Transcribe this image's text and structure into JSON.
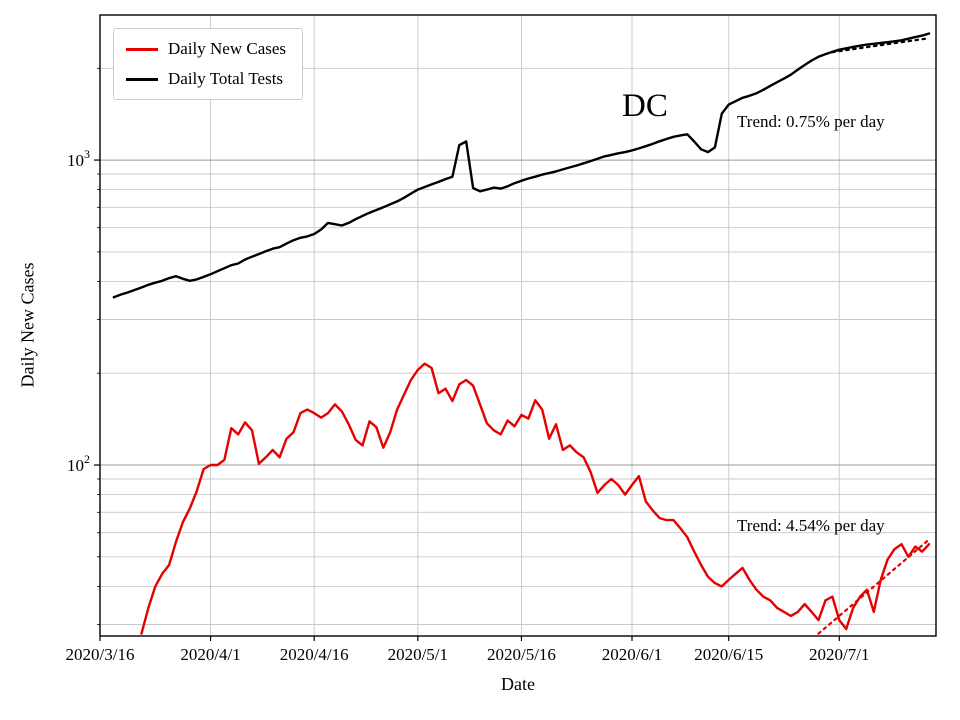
{
  "chart_data": {
    "type": "line",
    "title": "",
    "xlabel": "Date",
    "ylabel": "Daily New Cases",
    "y_scale": "log",
    "x_unit": "days since 2020/3/16",
    "x_domain": [
      0,
      121
    ],
    "ylim": [
      27.5,
      2990
    ],
    "grid": true,
    "grid_color_major": "#999999",
    "grid_color_minor": "#c9c9c9",
    "x_ticks": [
      {
        "day": 0,
        "label": "2020/3/16"
      },
      {
        "day": 16,
        "label": "2020/4/1"
      },
      {
        "day": 31,
        "label": "2020/4/16"
      },
      {
        "day": 46,
        "label": "2020/5/1"
      },
      {
        "day": 61,
        "label": "2020/5/16"
      },
      {
        "day": 77,
        "label": "2020/6/1"
      },
      {
        "day": 91,
        "label": "2020/6/15"
      },
      {
        "day": 107,
        "label": "2020/7/1"
      }
    ],
    "y_ticks": [
      {
        "value": 100,
        "base": "10",
        "exp": "2"
      },
      {
        "value": 1000,
        "base": "10",
        "exp": "3"
      }
    ],
    "y_minor_gridlines": [
      30,
      40,
      50,
      60,
      70,
      80,
      90,
      200,
      300,
      400,
      500,
      600,
      700,
      800,
      900,
      2000
    ],
    "legend": {
      "position": "upper left"
    },
    "series": [
      {
        "name": "Daily New Cases",
        "color": "#e60000",
        "points": [
          [
            6,
            28
          ],
          [
            7,
            34
          ],
          [
            8,
            40
          ],
          [
            9,
            44
          ],
          [
            10,
            47
          ],
          [
            11,
            56
          ],
          [
            12,
            65
          ],
          [
            13,
            72
          ],
          [
            14,
            82
          ],
          [
            15,
            97
          ],
          [
            16,
            100
          ],
          [
            17,
            100
          ],
          [
            18,
            104
          ],
          [
            19,
            132
          ],
          [
            20,
            126
          ],
          [
            21,
            138
          ],
          [
            22,
            130
          ],
          [
            23,
            101
          ],
          [
            24,
            106
          ],
          [
            25,
            112
          ],
          [
            26,
            106
          ],
          [
            27,
            122
          ],
          [
            28,
            128
          ],
          [
            29,
            148
          ],
          [
            30,
            152
          ],
          [
            31,
            148
          ],
          [
            32,
            143
          ],
          [
            33,
            148
          ],
          [
            34,
            158
          ],
          [
            35,
            150
          ],
          [
            36,
            136
          ],
          [
            37,
            121
          ],
          [
            38,
            116
          ],
          [
            39,
            139
          ],
          [
            40,
            133
          ],
          [
            41,
            114
          ],
          [
            42,
            128
          ],
          [
            43,
            152
          ],
          [
            44,
            170
          ],
          [
            45,
            190
          ],
          [
            46,
            205
          ],
          [
            47,
            215
          ],
          [
            48,
            208
          ],
          [
            49,
            172
          ],
          [
            50,
            178
          ],
          [
            51,
            162
          ],
          [
            52,
            184
          ],
          [
            53,
            190
          ],
          [
            54,
            182
          ],
          [
            55,
            158
          ],
          [
            56,
            137
          ],
          [
            57,
            130
          ],
          [
            58,
            126
          ],
          [
            59,
            140
          ],
          [
            60,
            134
          ],
          [
            61,
            146
          ],
          [
            62,
            142
          ],
          [
            63,
            163
          ],
          [
            64,
            152
          ],
          [
            65,
            122
          ],
          [
            66,
            136
          ],
          [
            67,
            112
          ],
          [
            68,
            116
          ],
          [
            69,
            110
          ],
          [
            70,
            106
          ],
          [
            71,
            95
          ],
          [
            72,
            81
          ],
          [
            73,
            86
          ],
          [
            74,
            90
          ],
          [
            75,
            86
          ],
          [
            76,
            80
          ],
          [
            77,
            86
          ],
          [
            78,
            92
          ],
          [
            79,
            76
          ],
          [
            80,
            71
          ],
          [
            81,
            67
          ],
          [
            82,
            66
          ],
          [
            83,
            66
          ],
          [
            84,
            62
          ],
          [
            85,
            58
          ],
          [
            86,
            52
          ],
          [
            87,
            47
          ],
          [
            88,
            43
          ],
          [
            89,
            41
          ],
          [
            90,
            40
          ],
          [
            91,
            42
          ],
          [
            92,
            44
          ],
          [
            93,
            46
          ],
          [
            94,
            42
          ],
          [
            95,
            39
          ],
          [
            96,
            37
          ],
          [
            97,
            36
          ],
          [
            98,
            34
          ],
          [
            99,
            33
          ],
          [
            100,
            32
          ],
          [
            101,
            33
          ],
          [
            102,
            35
          ],
          [
            103,
            33
          ],
          [
            104,
            31
          ],
          [
            105,
            36
          ],
          [
            106,
            37
          ],
          [
            107,
            31
          ],
          [
            108,
            29
          ],
          [
            109,
            34
          ],
          [
            110,
            37
          ],
          [
            111,
            39
          ],
          [
            112,
            33
          ],
          [
            113,
            42
          ],
          [
            114,
            49
          ],
          [
            115,
            53
          ],
          [
            116,
            55
          ],
          [
            117,
            50
          ],
          [
            118,
            54
          ],
          [
            119,
            52
          ],
          [
            120,
            55
          ]
        ]
      },
      {
        "name": "Daily Total Tests",
        "color": "#000000",
        "points": [
          [
            2,
            355
          ],
          [
            3,
            362
          ],
          [
            4,
            368
          ],
          [
            5,
            375
          ],
          [
            6,
            382
          ],
          [
            7,
            390
          ],
          [
            8,
            396
          ],
          [
            9,
            402
          ],
          [
            10,
            410
          ],
          [
            11,
            416
          ],
          [
            12,
            408
          ],
          [
            13,
            402
          ],
          [
            14,
            406
          ],
          [
            15,
            414
          ],
          [
            16,
            422
          ],
          [
            17,
            432
          ],
          [
            18,
            442
          ],
          [
            19,
            452
          ],
          [
            20,
            458
          ],
          [
            21,
            472
          ],
          [
            22,
            482
          ],
          [
            23,
            492
          ],
          [
            24,
            502
          ],
          [
            25,
            512
          ],
          [
            26,
            518
          ],
          [
            27,
            532
          ],
          [
            28,
            546
          ],
          [
            29,
            556
          ],
          [
            30,
            562
          ],
          [
            31,
            572
          ],
          [
            32,
            592
          ],
          [
            33,
            622
          ],
          [
            34,
            616
          ],
          [
            35,
            610
          ],
          [
            36,
            622
          ],
          [
            37,
            640
          ],
          [
            38,
            656
          ],
          [
            39,
            672
          ],
          [
            40,
            686
          ],
          [
            41,
            700
          ],
          [
            42,
            716
          ],
          [
            43,
            732
          ],
          [
            44,
            752
          ],
          [
            45,
            776
          ],
          [
            46,
            800
          ],
          [
            47,
            816
          ],
          [
            48,
            832
          ],
          [
            49,
            848
          ],
          [
            50,
            866
          ],
          [
            51,
            882
          ],
          [
            52,
            1120
          ],
          [
            53,
            1150
          ],
          [
            54,
            810
          ],
          [
            55,
            790
          ],
          [
            56,
            800
          ],
          [
            57,
            812
          ],
          [
            58,
            806
          ],
          [
            59,
            820
          ],
          [
            60,
            840
          ],
          [
            61,
            856
          ],
          [
            62,
            870
          ],
          [
            63,
            882
          ],
          [
            64,
            896
          ],
          [
            65,
            906
          ],
          [
            66,
            918
          ],
          [
            67,
            932
          ],
          [
            68,
            946
          ],
          [
            69,
            960
          ],
          [
            70,
            976
          ],
          [
            71,
            992
          ],
          [
            72,
            1010
          ],
          [
            73,
            1028
          ],
          [
            74,
            1040
          ],
          [
            75,
            1052
          ],
          [
            76,
            1062
          ],
          [
            77,
            1076
          ],
          [
            78,
            1092
          ],
          [
            79,
            1110
          ],
          [
            80,
            1130
          ],
          [
            81,
            1152
          ],
          [
            82,
            1172
          ],
          [
            83,
            1192
          ],
          [
            84,
            1205
          ],
          [
            85,
            1215
          ],
          [
            86,
            1150
          ],
          [
            87,
            1085
          ],
          [
            88,
            1062
          ],
          [
            89,
            1100
          ],
          [
            90,
            1420
          ],
          [
            91,
            1520
          ],
          [
            92,
            1560
          ],
          [
            93,
            1600
          ],
          [
            94,
            1625
          ],
          [
            95,
            1655
          ],
          [
            96,
            1700
          ],
          [
            97,
            1750
          ],
          [
            98,
            1800
          ],
          [
            99,
            1850
          ],
          [
            100,
            1905
          ],
          [
            101,
            1980
          ],
          [
            102,
            2050
          ],
          [
            103,
            2120
          ],
          [
            104,
            2180
          ],
          [
            105,
            2225
          ],
          [
            106,
            2265
          ],
          [
            107,
            2300
          ],
          [
            108,
            2325
          ],
          [
            109,
            2350
          ],
          [
            110,
            2372
          ],
          [
            111,
            2392
          ],
          [
            112,
            2405
          ],
          [
            113,
            2420
          ],
          [
            114,
            2435
          ],
          [
            115,
            2452
          ],
          [
            116,
            2470
          ],
          [
            117,
            2500
          ],
          [
            118,
            2530
          ],
          [
            119,
            2560
          ],
          [
            120,
            2600
          ]
        ]
      }
    ],
    "trend_lines": [
      {
        "name": "cases-trend",
        "color": "#e60000",
        "style": "dotted",
        "rate_label": "4.54% per day",
        "points": [
          [
            104,
            28
          ],
          [
            120,
            57
          ]
        ]
      },
      {
        "name": "tests-trend",
        "color": "#000000",
        "style": "dotted",
        "rate_label": "0.75% per day",
        "points": [
          [
            106,
            2260
          ],
          [
            120,
            2510
          ]
        ]
      }
    ],
    "annotations": [
      {
        "id": "region",
        "text": "DC"
      },
      {
        "id": "tests-trend-label",
        "text": "Trend: 0.75% per day"
      },
      {
        "id": "cases-trend-label",
        "text": "Trend: 4.54% per day"
      }
    ]
  }
}
